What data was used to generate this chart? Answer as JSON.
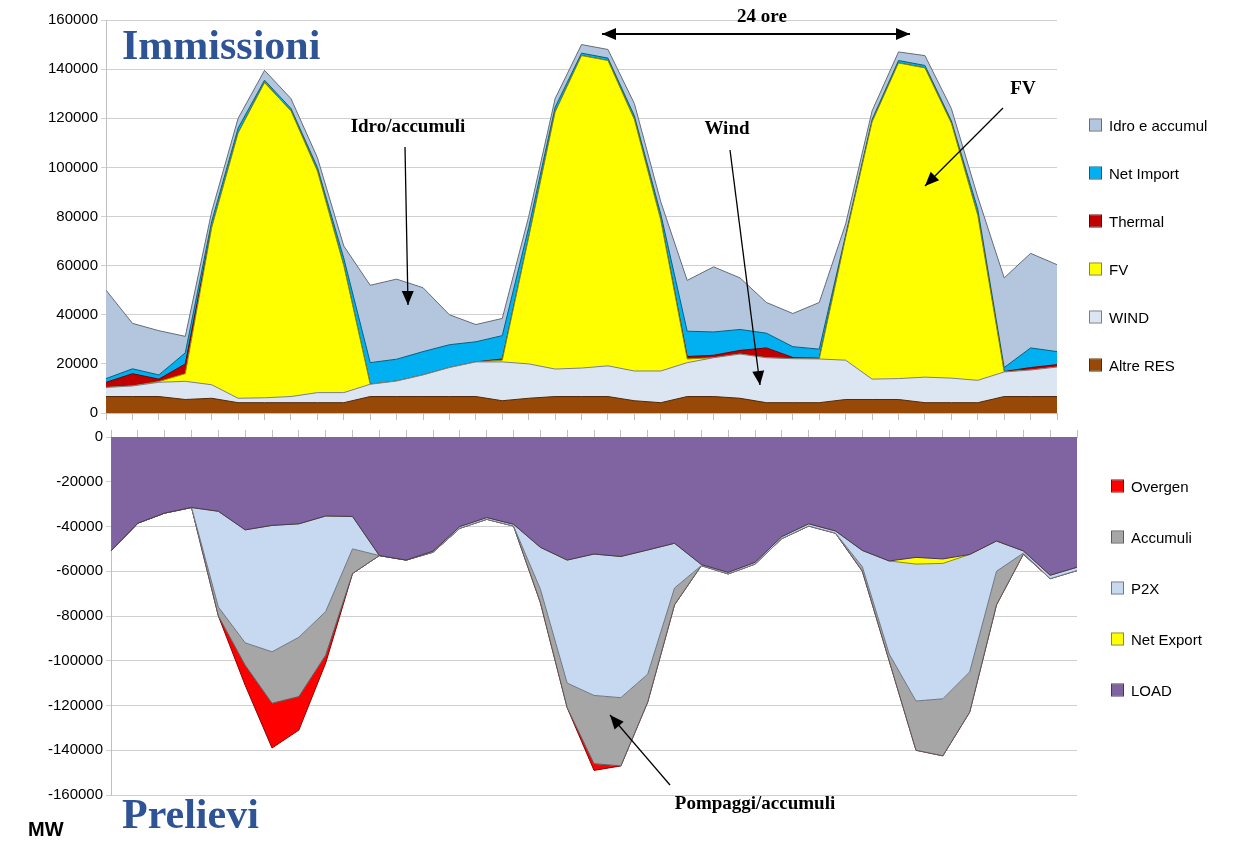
{
  "chart_data": [
    {
      "type": "area",
      "title": "Immissioni",
      "stacked": true,
      "grid": "y",
      "legend": "right",
      "marker": "none",
      "line_style": "solid",
      "tick_labels": "y",
      "categories": [
        null,
        null,
        null,
        null,
        null,
        null,
        null,
        null,
        null,
        null,
        null,
        null,
        null,
        null,
        null,
        null,
        null,
        null,
        null,
        null,
        null,
        null,
        null,
        null,
        null,
        null,
        null,
        null,
        null,
        null,
        null,
        null,
        null,
        null,
        null,
        null,
        null
      ],
      "ylim": [
        0,
        160000
      ],
      "yticks": [
        0,
        20000,
        40000,
        60000,
        80000,
        100000,
        120000,
        140000,
        160000
      ],
      "annotations": [
        "Idro/accumuli",
        "Wind",
        "FV",
        "24 ore"
      ],
      "series": [
        {
          "name": "Altre RES",
          "color": "#984807",
          "values": [
            6700,
            6700,
            6700,
            5500,
            6000,
            4200,
            4200,
            4200,
            4200,
            4200,
            6700,
            6700,
            6700,
            6700,
            6700,
            5000,
            6000,
            6700,
            6700,
            6700,
            5000,
            4200,
            6700,
            6700,
            6000,
            4200,
            4200,
            4200,
            5500,
            5500,
            5500,
            4200,
            4200,
            4200,
            6700,
            6700,
            6700
          ]
        },
        {
          "name": "WIND",
          "color": "#dce6f2",
          "values": [
            3700,
            4300,
            5800,
            7400,
            5500,
            1800,
            2000,
            2500,
            4100,
            4100,
            5000,
            6300,
            8800,
            11800,
            14100,
            15800,
            14000,
            11200,
            11600,
            12500,
            12100,
            12900,
            13800,
            15800,
            18000,
            18300,
            17900,
            17800,
            16000,
            8300,
            8500,
            10400,
            10000,
            9100,
            10000,
            10800,
            12000
          ]
        },
        {
          "name": "FV",
          "color": "#ffff00",
          "values": [
            0,
            0,
            300,
            3100,
            64000,
            108000,
            128300,
            116300,
            90200,
            51700,
            0,
            0,
            0,
            0,
            0,
            700,
            51500,
            104600,
            127200,
            124300,
            102400,
            61400,
            1500,
            0,
            0,
            0,
            0,
            0,
            50000,
            104700,
            128500,
            125900,
            103800,
            67200,
            0,
            0,
            0
          ]
        },
        {
          "name": "Thermal",
          "color": "#c00000",
          "values": [
            2100,
            5000,
            1000,
            4000,
            0,
            0,
            0,
            0,
            0,
            0,
            0,
            0,
            0,
            0,
            0,
            500,
            0,
            0,
            0,
            0,
            0,
            0,
            1000,
            1000,
            1500,
            4000,
            500,
            300,
            0,
            0,
            0,
            0,
            0,
            0,
            200,
            1000,
            1000
          ]
        },
        {
          "name": "Net Import",
          "color": "#00b0f0",
          "values": [
            1500,
            2000,
            1700,
            4500,
            2500,
            2000,
            1000,
            1000,
            1500,
            3000,
            8800,
            8900,
            9500,
            9300,
            8200,
            9500,
            4000,
            2000,
            1000,
            1000,
            1500,
            2500,
            10300,
            9500,
            8500,
            6000,
            4400,
            3700,
            1000,
            1000,
            1000,
            1000,
            1000,
            2500,
            1600,
            8000,
            5300
          ]
        },
        {
          "name": "Idro e accumul",
          "color": "#b4c6de",
          "values": [
            36000,
            18500,
            18000,
            6700,
            4000,
            4000,
            4000,
            4000,
            4000,
            5000,
            31500,
            32600,
            26000,
            12200,
            7000,
            7000,
            4500,
            3500,
            3500,
            3500,
            5000,
            5000,
            20700,
            26500,
            21000,
            12500,
            13500,
            19000,
            4500,
            3500,
            3500,
            4000,
            5000,
            5000,
            36500,
            38500,
            35400
          ]
        }
      ]
    },
    {
      "type": "area",
      "title": "Prelievi",
      "ylabel": "MW",
      "stacked": true,
      "grid": "y",
      "legend": "right",
      "marker": "none",
      "line_style": "solid",
      "tick_labels": "y",
      "categories": [
        null,
        null,
        null,
        null,
        null,
        null,
        null,
        null,
        null,
        null,
        null,
        null,
        null,
        null,
        null,
        null,
        null,
        null,
        null,
        null,
        null,
        null,
        null,
        null,
        null,
        null,
        null,
        null,
        null,
        null,
        null,
        null,
        null,
        null,
        null,
        null,
        null
      ],
      "ylim": [
        -160000,
        0
      ],
      "yticks": [
        -160000,
        -140000,
        -120000,
        -100000,
        -80000,
        -60000,
        -40000,
        -20000,
        0
      ],
      "annotations": [
        "Pompaggi/accumuli"
      ],
      "series": [
        {
          "name": "LOAD",
          "color": "#8064a2",
          "values": [
            -50900,
            -38500,
            -34000,
            -31500,
            -33200,
            -41500,
            -39500,
            -38800,
            -35300,
            -35500,
            -53000,
            -55000,
            -51000,
            -40000,
            -36000,
            -39000,
            -49300,
            -55000,
            -52300,
            -53400,
            -50500,
            -47500,
            -57000,
            -60500,
            -56000,
            -44500,
            -38800,
            -42000,
            -50700,
            -55400,
            -53800,
            -54500,
            -52500,
            -46500,
            -50900,
            -61800,
            -58200
          ]
        },
        {
          "name": "Net Export",
          "color": "#ffff00",
          "values": [
            0,
            0,
            0,
            0,
            0,
            0,
            0,
            0,
            0,
            0,
            0,
            0,
            0,
            0,
            0,
            0,
            0,
            0,
            0,
            0,
            0,
            0,
            0,
            0,
            0,
            0,
            0,
            0,
            0,
            0,
            -3000,
            -2000,
            0,
            0,
            0,
            0,
            0
          ]
        },
        {
          "name": "P2X",
          "color": "#c6d9f0",
          "values": [
            0,
            0,
            0,
            0,
            -42800,
            -50500,
            -56500,
            -50700,
            -42700,
            -14500,
            0,
            0,
            -500,
            -800,
            -800,
            -800,
            -18700,
            -55000,
            -63200,
            -63100,
            -55500,
            -20000,
            -500,
            -700,
            -800,
            -900,
            -1000,
            -1000,
            -7300,
            -41600,
            -61200,
            -60500,
            -52500,
            -13500,
            -1000,
            -1500,
            -1500
          ]
        },
        {
          "name": "Accumuli",
          "color": "#a6a6a6",
          "values": [
            0,
            0,
            0,
            0,
            -4000,
            -10000,
            -23000,
            -26500,
            -19500,
            -11000,
            0,
            0,
            0,
            0,
            0,
            0,
            -6000,
            -11000,
            -30500,
            -30500,
            -12500,
            -7500,
            0,
            0,
            0,
            0,
            0,
            0,
            -2000,
            -3000,
            -22000,
            -25500,
            -18000,
            -15000,
            -500,
            0,
            0
          ]
        },
        {
          "name": "Overgen",
          "color": "#ff0000",
          "values": [
            0,
            0,
            0,
            0,
            0,
            -9000,
            -20000,
            -15000,
            -3500,
            0,
            0,
            0,
            0,
            0,
            0,
            0,
            0,
            0,
            -3000,
            0,
            0,
            0,
            0,
            0,
            0,
            0,
            0,
            0,
            0,
            0,
            0,
            0,
            0,
            0,
            0,
            0,
            0
          ]
        }
      ]
    }
  ]
}
